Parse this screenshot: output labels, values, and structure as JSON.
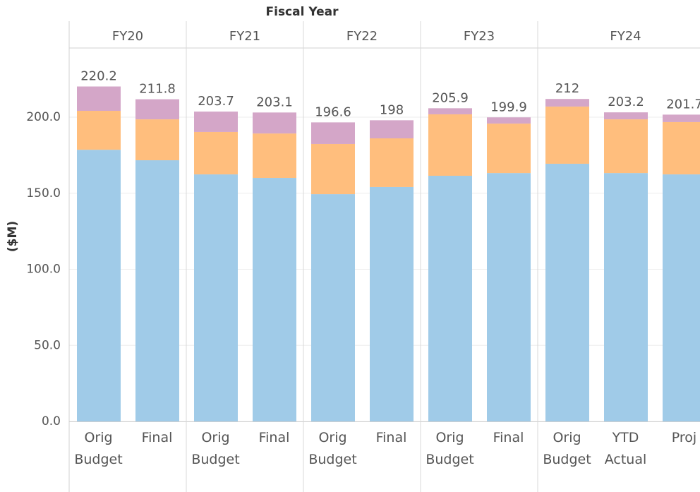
{
  "chart_data": {
    "type": "stacked-bar",
    "title": "Fiscal Year",
    "y_label": "($M)",
    "groups": [
      {
        "label": "FY20",
        "categories": [
          "Orig Budget",
          "Final"
        ]
      },
      {
        "label": "FY21",
        "categories": [
          "Orig Budget",
          "Final"
        ]
      },
      {
        "label": "FY22",
        "categories": [
          "Orig Budget",
          "Final"
        ]
      },
      {
        "label": "FY23",
        "categories": [
          "Orig Budget",
          "Final"
        ]
      },
      {
        "label": "FY24",
        "categories": [
          "Orig Budget",
          "YTD Actual",
          "Proj"
        ]
      }
    ],
    "series": [
      {
        "color": "#a0cbe8",
        "values": [
          178.6,
          171.7,
          162.4,
          160.1,
          149.4,
          154.1,
          161.5,
          163.3,
          169.4,
          163.3,
          162.4
        ]
      },
      {
        "color": "#ffbe7d",
        "values": [
          25.6,
          26.9,
          27.9,
          29.2,
          33.0,
          32.0,
          40.4,
          32.5,
          37.6,
          35.3,
          34.4
        ]
      },
      {
        "color": "#d4a6c8",
        "values": [
          16.0,
          13.2,
          13.4,
          13.8,
          14.2,
          11.9,
          4.0,
          4.1,
          5.0,
          4.6,
          4.9
        ]
      }
    ],
    "totals": [
      220.2,
      211.8,
      203.7,
      203.1,
      196.6,
      198.0,
      205.9,
      199.9,
      212.0,
      203.2,
      201.7
    ],
    "ylim": [
      0,
      245.5
    ],
    "yticks": [
      {
        "value": 0,
        "label": "0.0"
      },
      {
        "value": 50,
        "label": "50.0"
      },
      {
        "value": 100,
        "label": "100.0"
      },
      {
        "value": 150,
        "label": "150.0"
      },
      {
        "value": 200,
        "label": "200.0"
      }
    ],
    "grid": true
  }
}
